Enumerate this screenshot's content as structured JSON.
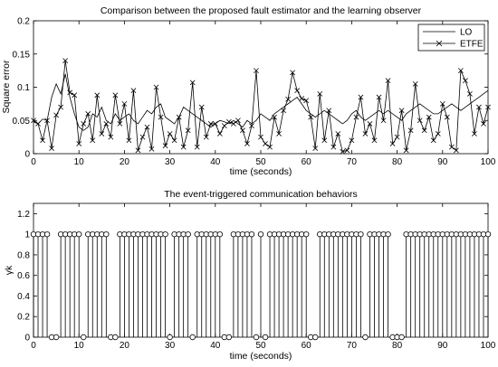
{
  "figure": {
    "background": "#ffffff"
  },
  "chart_data": [
    {
      "type": "line",
      "title": "Comparison between the proposed fault estimator and the learning observer",
      "xlabel": "time (seconds)",
      "ylabel": "Square error",
      "xlim": [
        0,
        100
      ],
      "ylim": [
        0,
        0.2
      ],
      "xticks": [
        "0",
        "10",
        "20",
        "30",
        "40",
        "50",
        "60",
        "70",
        "80",
        "90",
        "100"
      ],
      "yticks": [
        "0",
        "0.05",
        "0.1",
        "0.15",
        "0.2"
      ],
      "grid": false,
      "legend_position": "top-right",
      "series": [
        {
          "name": "LO",
          "color": "#000000",
          "marker": "none",
          "x": [
            0,
            1,
            2,
            3,
            4,
            5,
            6,
            7,
            8,
            9,
            10,
            11,
            12,
            13,
            14,
            15,
            16,
            17,
            18,
            19,
            20,
            21,
            22,
            23,
            24,
            25,
            26,
            27,
            28,
            29,
            30,
            31,
            32,
            33,
            34,
            35,
            36,
            37,
            38,
            39,
            40,
            41,
            42,
            43,
            44,
            45,
            46,
            47,
            48,
            49,
            50,
            51,
            52,
            53,
            54,
            55,
            56,
            57,
            58,
            59,
            60,
            61,
            62,
            63,
            64,
            65,
            66,
            67,
            68,
            69,
            70,
            71,
            72,
            73,
            74,
            75,
            76,
            77,
            78,
            79,
            80,
            81,
            82,
            83,
            84,
            85,
            86,
            87,
            88,
            89,
            90,
            91,
            92,
            93,
            94,
            95,
            96,
            97,
            98,
            99,
            100
          ],
          "values": [
            0.048,
            0.045,
            0.052,
            0.05,
            0.085,
            0.105,
            0.09,
            0.12,
            0.085,
            0.06,
            0.04,
            0.035,
            0.04,
            0.06,
            0.055,
            0.07,
            0.05,
            0.045,
            0.06,
            0.05,
            0.055,
            0.06,
            0.05,
            0.045,
            0.055,
            0.065,
            0.06,
            0.07,
            0.075,
            0.055,
            0.05,
            0.045,
            0.055,
            0.07,
            0.065,
            0.06,
            0.055,
            0.05,
            0.045,
            0.04,
            0.045,
            0.05,
            0.048,
            0.045,
            0.05,
            0.045,
            0.04,
            0.05,
            0.045,
            0.05,
            0.06,
            0.055,
            0.05,
            0.06,
            0.065,
            0.07,
            0.075,
            0.08,
            0.085,
            0.075,
            0.065,
            0.06,
            0.055,
            0.06,
            0.065,
            0.06,
            0.055,
            0.05,
            0.045,
            0.05,
            0.06,
            0.065,
            0.055,
            0.05,
            0.055,
            0.06,
            0.065,
            0.06,
            0.065,
            0.06,
            0.055,
            0.05,
            0.06,
            0.065,
            0.07,
            0.075,
            0.07,
            0.065,
            0.06,
            0.06,
            0.065,
            0.07,
            0.075,
            0.07,
            0.065,
            0.07,
            0.075,
            0.08,
            0.085,
            0.09,
            0.095
          ]
        },
        {
          "name": "ETFE",
          "color": "#000000",
          "marker": "x",
          "x": [
            0,
            1,
            2,
            3,
            4,
            5,
            6,
            7,
            8,
            9,
            10,
            11,
            12,
            13,
            14,
            15,
            16,
            17,
            18,
            19,
            20,
            21,
            22,
            23,
            24,
            25,
            26,
            27,
            28,
            29,
            30,
            31,
            32,
            33,
            34,
            35,
            36,
            37,
            38,
            39,
            40,
            41,
            42,
            43,
            44,
            45,
            46,
            47,
            48,
            49,
            50,
            51,
            52,
            53,
            54,
            55,
            56,
            57,
            58,
            59,
            60,
            61,
            62,
            63,
            64,
            65,
            66,
            67,
            68,
            69,
            70,
            71,
            72,
            73,
            74,
            75,
            76,
            77,
            78,
            79,
            80,
            81,
            82,
            83,
            84,
            85,
            86,
            87,
            88,
            89,
            90,
            91,
            92,
            93,
            94,
            95,
            96,
            97,
            98,
            99,
            100
          ],
          "values": [
            0.05,
            0.045,
            0.02,
            0.05,
            0.008,
            0.058,
            0.07,
            0.14,
            0.092,
            0.088,
            0.015,
            0.045,
            0.06,
            0.02,
            0.088,
            0.03,
            0.045,
            0.025,
            0.088,
            0.045,
            0.075,
            0.02,
            0.095,
            0.005,
            0.025,
            0.04,
            0.007,
            0.1,
            0.055,
            0.012,
            0.03,
            0.02,
            0.055,
            0.01,
            0.035,
            0.107,
            0.01,
            0.07,
            0.025,
            0.045,
            0.045,
            0.03,
            0.042,
            0.048,
            0.045,
            0.05,
            0.035,
            0.015,
            0.042,
            0.125,
            0.025,
            0.015,
            0.01,
            0.055,
            0.03,
            0.065,
            0.082,
            0.122,
            0.095,
            0.083,
            0.08,
            0.055,
            0.008,
            0.09,
            0.02,
            0.065,
            0.01,
            0.03,
            0.003,
            0.005,
            0.02,
            0.055,
            0.085,
            0.03,
            0.045,
            0.02,
            0.085,
            0.05,
            0.11,
            0.015,
            0.025,
            0.065,
            0.005,
            0.035,
            0.105,
            0.05,
            0.035,
            0.055,
            0.02,
            0.03,
            0.075,
            0.055,
            0.01,
            0.005,
            0.125,
            0.11,
            0.09,
            0.03,
            0.07,
            0.045,
            0.07
          ]
        }
      ]
    },
    {
      "type": "stem",
      "title": "The event-triggered communication behaviors",
      "xlabel": "time (seconds)",
      "ylabel": "γk",
      "xlim": [
        0,
        100
      ],
      "ylim": [
        0,
        1.3
      ],
      "xticks": [
        "0",
        "10",
        "20",
        "30",
        "40",
        "50",
        "60",
        "70",
        "80",
        "90",
        "100"
      ],
      "yticks": [
        "0",
        "0.2",
        "0.4",
        "0.6",
        "0.8",
        "1",
        "1.2"
      ],
      "grid": false,
      "series": [
        {
          "marker": "o",
          "color": "#000000",
          "x": [
            0,
            1,
            2,
            3,
            4,
            5,
            6,
            7,
            8,
            9,
            10,
            11,
            12,
            13,
            14,
            15,
            16,
            17,
            18,
            19,
            20,
            21,
            22,
            23,
            24,
            25,
            26,
            27,
            28,
            29,
            30,
            31,
            32,
            33,
            34,
            35,
            36,
            37,
            38,
            39,
            40,
            41,
            42,
            43,
            44,
            45,
            46,
            47,
            48,
            49,
            50,
            51,
            52,
            53,
            54,
            55,
            56,
            57,
            58,
            59,
            60,
            61,
            62,
            63,
            64,
            65,
            66,
            67,
            68,
            69,
            70,
            71,
            72,
            73,
            74,
            75,
            76,
            77,
            78,
            79,
            80,
            81,
            82,
            83,
            84,
            85,
            86,
            87,
            88,
            89,
            90,
            91,
            92,
            93,
            94,
            95,
            96,
            97,
            98,
            99,
            100
          ],
          "values": [
            1,
            1,
            1,
            1,
            0,
            0,
            1,
            1,
            1,
            1,
            1,
            0,
            1,
            1,
            1,
            1,
            1,
            0,
            0,
            1,
            1,
            1,
            1,
            1,
            1,
            1,
            1,
            1,
            1,
            1,
            0,
            1,
            1,
            1,
            1,
            0,
            1,
            1,
            1,
            1,
            1,
            1,
            0,
            0,
            1,
            1,
            1,
            1,
            1,
            0,
            1,
            0,
            1,
            1,
            1,
            1,
            1,
            1,
            1,
            1,
            1,
            0,
            0,
            1,
            1,
            1,
            1,
            1,
            1,
            1,
            1,
            1,
            1,
            0,
            1,
            1,
            1,
            1,
            1,
            0,
            0,
            0,
            1,
            1,
            1,
            1,
            1,
            1,
            1,
            1,
            1,
            1,
            1,
            1,
            1,
            1,
            1,
            1,
            1,
            1,
            1
          ]
        }
      ]
    }
  ]
}
